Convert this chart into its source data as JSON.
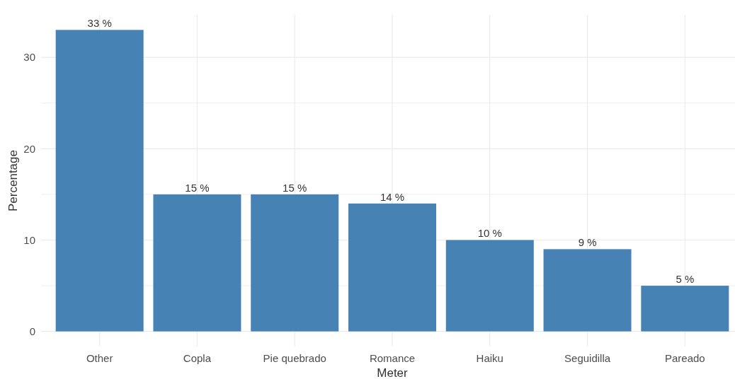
{
  "chart_data": {
    "type": "bar",
    "xlabel": "Meter",
    "ylabel": "Percentage",
    "categories": [
      "Other",
      "Copla",
      "Pie quebrado",
      "Romance",
      "Haiku",
      "Seguidilla",
      "Pareado"
    ],
    "values": [
      33,
      15,
      15,
      14,
      10,
      9,
      5
    ],
    "value_labels": [
      "33 %",
      "15 %",
      "15 %",
      "14 %",
      "10 %",
      "9 %",
      "5 %"
    ],
    "color": "#4682b4",
    "ylim": [
      -1.65,
      34.65
    ],
    "yticks": [
      0,
      {
        "value": 5,
        "label": null
      },
      10,
      {
        "value": 15,
        "label": null
      },
      20,
      {
        "value": 25,
        "label": null
      },
      30
    ],
    "grid": true
  }
}
